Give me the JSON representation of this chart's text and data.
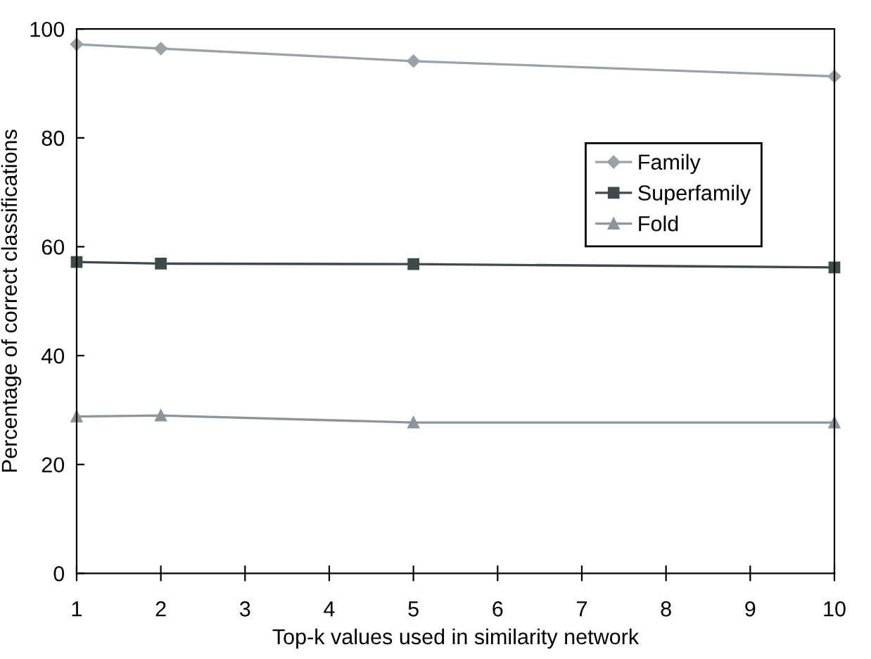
{
  "chart_data": {
    "type": "line",
    "xlabel": "Top-k values used in similarity network",
    "ylabel": "Percentage of correct classifications",
    "x": [
      1,
      2,
      5,
      10
    ],
    "series": [
      {
        "name": "Family",
        "color": "#98a2a8",
        "marker": "diamond",
        "values": [
          97.2,
          96.4,
          94.1,
          91.3
        ]
      },
      {
        "name": "Superfamily",
        "color": "#3e4a4c",
        "marker": "square",
        "values": [
          57.2,
          56.9,
          56.8,
          56.2
        ]
      },
      {
        "name": "Fold",
        "color": "#8a969c",
        "marker": "triangle",
        "values": [
          28.8,
          29.0,
          27.7,
          27.7
        ]
      }
    ],
    "xlim": [
      1,
      10
    ],
    "xticks": [
      1,
      2,
      3,
      4,
      5,
      6,
      7,
      8,
      9,
      10
    ],
    "ylim": [
      0,
      100
    ],
    "yticks": [
      0,
      20,
      40,
      60,
      80,
      100
    ],
    "grid": false,
    "legend": "top right",
    "line_style": "solid"
  }
}
